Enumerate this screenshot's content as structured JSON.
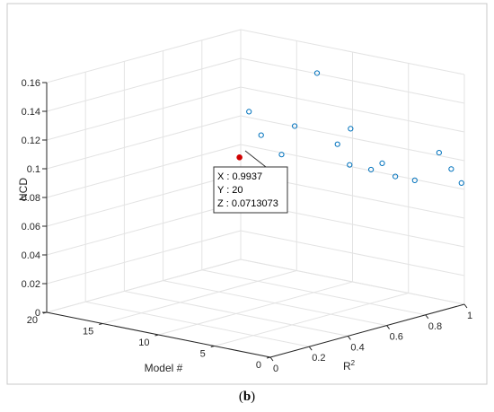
{
  "caption": {
    "open": "(",
    "label": "b",
    "close": ")"
  },
  "chart_data": {
    "type": "scatter3d",
    "xlabel": "R",
    "xlabel_superscript": "2",
    "ylabel": "Model #",
    "zlabel": "NCD",
    "xlim": [
      0,
      1
    ],
    "ylim": [
      0,
      20
    ],
    "zlim": [
      0,
      0.16
    ],
    "xticks": [
      "0",
      "0.2",
      "0.4",
      "0.6",
      "0.8",
      "1"
    ],
    "yticks": [
      "0",
      "5",
      "10",
      "15",
      "20"
    ],
    "zticks": [
      "0",
      "0.02",
      "0.04",
      "0.06",
      "0.08",
      "0.1",
      "0.12",
      "0.14",
      "0.16"
    ],
    "grid": true,
    "marker_color": "#0072BD",
    "highlight_color": "#D00000",
    "points": [
      {
        "x": 0.9937,
        "y": 20,
        "z": 0.0713073
      },
      {
        "x": 0.99,
        "y": 18,
        "z": 0.09
      },
      {
        "x": 0.98,
        "y": 16,
        "z": 0.08
      },
      {
        "x": 0.985,
        "y": 19,
        "z": 0.105
      },
      {
        "x": 0.99,
        "y": 15,
        "z": 0.101
      },
      {
        "x": 0.99,
        "y": 13,
        "z": 0.141
      },
      {
        "x": 0.98,
        "y": 11,
        "z": 0.095
      },
      {
        "x": 0.99,
        "y": 10,
        "z": 0.107
      },
      {
        "x": 0.985,
        "y": 10,
        "z": 0.082
      },
      {
        "x": 0.98,
        "y": 8,
        "z": 0.082
      },
      {
        "x": 0.98,
        "y": 7,
        "z": 0.088
      },
      {
        "x": 0.99,
        "y": 6,
        "z": 0.08
      },
      {
        "x": 0.975,
        "y": 4,
        "z": 0.081
      },
      {
        "x": 0.985,
        "y": 2,
        "z": 0.103
      },
      {
        "x": 0.99,
        "y": 1,
        "z": 0.093
      },
      {
        "x": 0.985,
        "y": 0,
        "z": 0.085
      }
    ],
    "highlight_index": 0,
    "datatip": {
      "x_label": "X : 0.9937",
      "y_label": "Y : 20",
      "z_label": "Z : 0.0713073"
    }
  }
}
